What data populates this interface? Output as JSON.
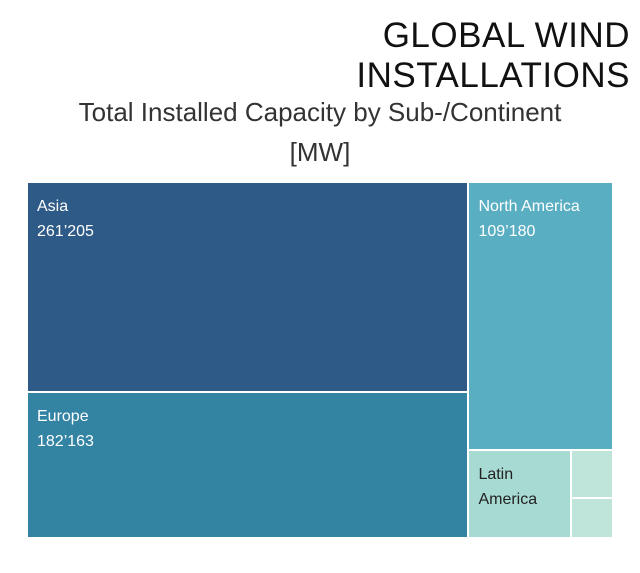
{
  "chart_data": {
    "type": "treemap",
    "title": "GLOBAL WIND INSTALLATIONS",
    "subtitle": "Total Installed Capacity by Sub-/Continent [MW]",
    "categories": [
      "Asia",
      "Europe",
      "North America",
      "Latin America",
      null,
      null
    ],
    "values": [
      261205,
      182163,
      109180,
      25500,
      5700,
      4800
    ],
    "value_labels": [
      "261’205",
      "182’163",
      "109’180",
      null,
      null,
      null
    ],
    "colors": [
      "#2e5a87",
      "#3383a3",
      "#5aaec2",
      "#a8dad4",
      "#bfe5da",
      "#bfe5da"
    ]
  }
}
